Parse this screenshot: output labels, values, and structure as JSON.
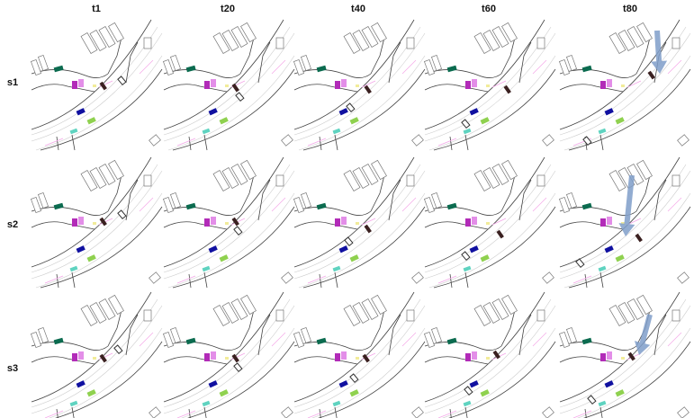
{
  "columns": [
    "t1",
    "t20",
    "t40",
    "t60",
    "t80"
  ],
  "rows": [
    "s1",
    "s2",
    "s3"
  ]
}
